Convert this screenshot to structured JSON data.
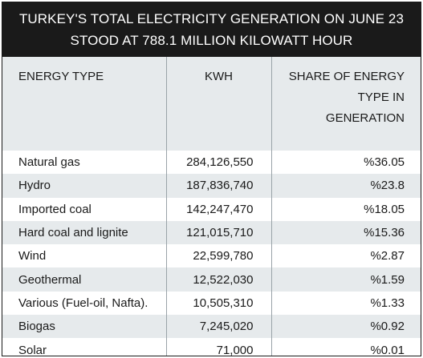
{
  "title_lines": [
    "TURKEY'S TOTAL ELECTRICITY GENERATION ON JUNE 23",
    "STOOD AT 788.1 MILLION KILOWATT HOUR"
  ],
  "chart_data": {
    "type": "table",
    "title": "TURKEY'S TOTAL ELECTRICITY GENERATION ON JUNE 23 STOOD AT 788.1 MILLION KILOWATT HOUR",
    "columns": [
      "ENERGY TYPE",
      "KWH",
      "SHARE OF ENERGY TYPE IN GENERATION"
    ],
    "rows": [
      [
        "Natural gas",
        "284,126,550",
        "%36.05"
      ],
      [
        "Hydro",
        "187,836,740",
        "%23.8"
      ],
      [
        "Imported coal",
        "142,247,470",
        "%18.05"
      ],
      [
        "Hard coal and lignite",
        "121,015,710",
        "%15.36"
      ],
      [
        "Wind",
        "22,599,780",
        "%2.87"
      ],
      [
        "Geothermal",
        "12,522,030",
        "%1.59"
      ],
      [
        "Various (Fuel-oil, Nafta).",
        "10,505,310",
        "%1.33"
      ],
      [
        "Biogas",
        "7,245,020",
        "%0.92"
      ],
      [
        "Solar",
        "71,000",
        "%0.01"
      ]
    ]
  }
}
